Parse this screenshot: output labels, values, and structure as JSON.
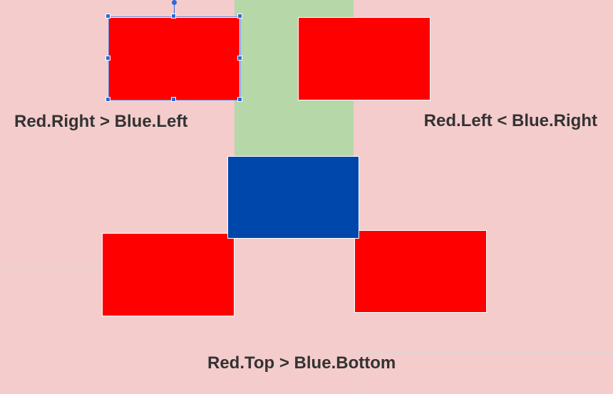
{
  "labels": {
    "right_vs_left": "Red.Right > Blue.Left",
    "left_vs_right": "Red.Left < Blue.Right",
    "top_vs_bottom": "Red.Top > Blue.Bottom"
  },
  "colors": {
    "background": "#f4cccc",
    "stripe": "#b6d7a8",
    "red": "#ff0000",
    "blue": "#0047ab",
    "selection": "#2a6ae0"
  },
  "shapes": {
    "red_boxes": [
      "red-box-top-left",
      "red-box-top-right",
      "red-box-bottom-left",
      "red-box-bottom-right"
    ],
    "blue_box": "blue-box",
    "selected": "red-box-top-left"
  }
}
